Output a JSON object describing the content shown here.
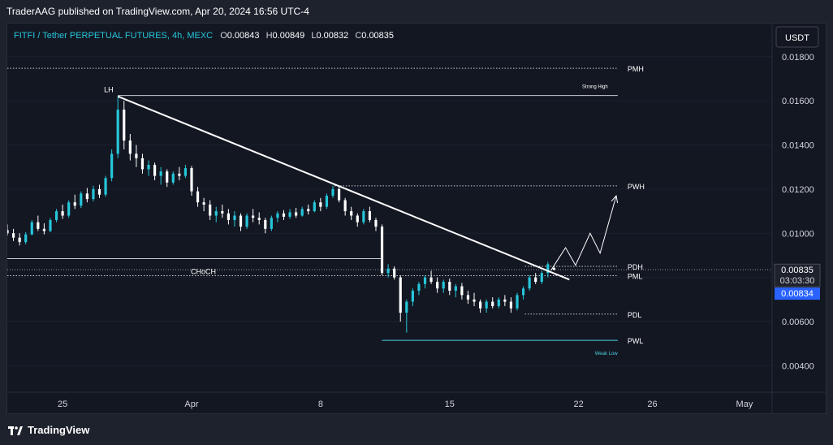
{
  "publisher_line": "TraderAAG published on TradingView.com, Apr 20, 2024 16:56 UTC-4",
  "brand": {
    "name": "TradingView"
  },
  "symbol": {
    "title": "FITFI / Tether PERPETUAL FUTURES, 4h, MEXC",
    "o_label": "O",
    "o": "0.00843",
    "h_label": "H",
    "h": "0.00849",
    "l_label": "L",
    "l": "0.00832",
    "c_label": "C",
    "c": "0.00835"
  },
  "currency_button": "USDT",
  "price_box": {
    "last": "0.00835",
    "countdown": "03:03:30",
    "current": "0.00834"
  },
  "colors": {
    "bull": "#26c6da",
    "bear": "#ffffff",
    "accent": "#2962ff",
    "background": "#131722"
  },
  "chart_data": {
    "type": "candlestick",
    "y_ticks": [
      "0.01800",
      "0.01600",
      "0.01400",
      "0.01200",
      "0.01000",
      "0.00800",
      "0.00600",
      "0.00400"
    ],
    "y_tick_values": [
      0.018,
      0.016,
      0.014,
      0.012,
      0.01,
      0.008,
      0.006,
      0.004
    ],
    "ylim": [
      0.0028,
      0.0195
    ],
    "x_ticks": [
      "25",
      "Apr",
      "8",
      "15",
      "22",
      "26",
      "May"
    ],
    "x_tick_dates": [
      "2024-03-25",
      "2024-04-01",
      "2024-04-08",
      "2024-04-15",
      "2024-04-22",
      "2024-04-26",
      "2024-05-01"
    ],
    "xlim": [
      "2024-03-22T00:00",
      "2024-05-02T12:00"
    ],
    "levels": [
      {
        "label": "PMH",
        "value": 0.01747,
        "style": "dotted",
        "from": "2024-03-22T00:00",
        "to": "2024-04-24T03:00"
      },
      {
        "label": "Strong High",
        "value": 0.01624,
        "style": "solid",
        "from": "2024-03-28T00:00",
        "to": "2024-04-24T03:00"
      },
      {
        "label": "PWH",
        "value": 0.01215,
        "style": "dotted",
        "from": "2024-04-08T18:00",
        "to": "2024-04-24T03:00"
      },
      {
        "label": "CHoCH",
        "value": 0.00885,
        "style": "solid",
        "from": "2024-03-22T00:00",
        "to": "2024-04-11T08:00"
      },
      {
        "label": "PDH",
        "value": 0.0085,
        "style": "dotted",
        "from": "2024-04-19T02:00",
        "to": "2024-04-24T03:00"
      },
      {
        "label": "PML",
        "value": 0.00808,
        "style": "dotted",
        "from": "2024-03-22T00:00",
        "to": "2024-04-24T03:00"
      },
      {
        "label": "PDL",
        "value": 0.00634,
        "style": "dotted",
        "from": "2024-04-19T02:00",
        "to": "2024-04-24T03:00"
      },
      {
        "label": "PWL",
        "value": 0.00515,
        "style": "solid",
        "from": "2024-04-11T08:00",
        "to": "2024-04-24T03:00"
      }
    ],
    "annotations": [
      {
        "text": "LH",
        "x": "2024-03-27T12:00",
        "y": 0.0164
      },
      {
        "text": "Weak Low",
        "x": "2024-04-23T12:00",
        "y": 0.0045
      }
    ],
    "trendline": {
      "from": {
        "x": "2024-03-28T00:00",
        "y": 0.0162
      },
      "to": {
        "x": "2024-04-21T12:00",
        "y": 0.0079
      }
    },
    "projection": [
      {
        "x": "2024-04-20T12:00",
        "y": 0.00832
      },
      {
        "x": "2024-04-21T07:00",
        "y": 0.00935
      },
      {
        "x": "2024-04-21T20:00",
        "y": 0.00855
      },
      {
        "x": "2024-04-22T15:00",
        "y": 0.01
      },
      {
        "x": "2024-04-23T04:00",
        "y": 0.0091
      },
      {
        "x": "2024-04-24T01:00",
        "y": 0.0117
      }
    ],
    "candles": [
      {
        "t": "2024-03-22T00:00",
        "o": 0.01015,
        "h": 0.0104,
        "l": 0.0099,
        "c": 0.01
      },
      {
        "t": "2024-03-22T08:00",
        "o": 0.01,
        "h": 0.0102,
        "l": 0.00965,
        "c": 0.0098
      },
      {
        "t": "2024-03-22T16:00",
        "o": 0.0098,
        "h": 0.01,
        "l": 0.00945,
        "c": 0.0096
      },
      {
        "t": "2024-03-23T00:00",
        "o": 0.0096,
        "h": 0.01005,
        "l": 0.0095,
        "c": 0.00995
      },
      {
        "t": "2024-03-23T08:00",
        "o": 0.00995,
        "h": 0.0106,
        "l": 0.0099,
        "c": 0.0105
      },
      {
        "t": "2024-03-23T16:00",
        "o": 0.0105,
        "h": 0.0108,
        "l": 0.0101,
        "c": 0.0102
      },
      {
        "t": "2024-03-24T00:00",
        "o": 0.0102,
        "h": 0.01045,
        "l": 0.00995,
        "c": 0.0101
      },
      {
        "t": "2024-03-24T08:00",
        "o": 0.0101,
        "h": 0.0107,
        "l": 0.01005,
        "c": 0.0106
      },
      {
        "t": "2024-03-24T16:00",
        "o": 0.0106,
        "h": 0.0111,
        "l": 0.0105,
        "c": 0.011
      },
      {
        "t": "2024-03-25T00:00",
        "o": 0.011,
        "h": 0.0113,
        "l": 0.01065,
        "c": 0.0108
      },
      {
        "t": "2024-03-25T08:00",
        "o": 0.0108,
        "h": 0.0115,
        "l": 0.0107,
        "c": 0.0114
      },
      {
        "t": "2024-03-25T16:00",
        "o": 0.0114,
        "h": 0.01175,
        "l": 0.0111,
        "c": 0.01125
      },
      {
        "t": "2024-03-26T00:00",
        "o": 0.01125,
        "h": 0.0119,
        "l": 0.01115,
        "c": 0.0118
      },
      {
        "t": "2024-03-26T08:00",
        "o": 0.0118,
        "h": 0.01205,
        "l": 0.0114,
        "c": 0.01155
      },
      {
        "t": "2024-03-26T16:00",
        "o": 0.01155,
        "h": 0.01215,
        "l": 0.01145,
        "c": 0.012
      },
      {
        "t": "2024-03-27T00:00",
        "o": 0.012,
        "h": 0.0122,
        "l": 0.0116,
        "c": 0.01175
      },
      {
        "t": "2024-03-27T08:00",
        "o": 0.01175,
        "h": 0.0126,
        "l": 0.01165,
        "c": 0.0125
      },
      {
        "t": "2024-03-27T16:00",
        "o": 0.0125,
        "h": 0.0138,
        "l": 0.01235,
        "c": 0.0136
      },
      {
        "t": "2024-03-28T00:00",
        "o": 0.0136,
        "h": 0.0162,
        "l": 0.0134,
        "c": 0.0156
      },
      {
        "t": "2024-03-28T08:00",
        "o": 0.0156,
        "h": 0.016,
        "l": 0.0138,
        "c": 0.0142
      },
      {
        "t": "2024-03-28T16:00",
        "o": 0.0142,
        "h": 0.0145,
        "l": 0.0133,
        "c": 0.0136
      },
      {
        "t": "2024-03-29T00:00",
        "o": 0.0136,
        "h": 0.014,
        "l": 0.013,
        "c": 0.0134
      },
      {
        "t": "2024-03-29T08:00",
        "o": 0.0134,
        "h": 0.0136,
        "l": 0.0127,
        "c": 0.0129
      },
      {
        "t": "2024-03-29T16:00",
        "o": 0.0129,
        "h": 0.0133,
        "l": 0.0126,
        "c": 0.0131
      },
      {
        "t": "2024-03-30T00:00",
        "o": 0.0131,
        "h": 0.0132,
        "l": 0.0124,
        "c": 0.0126
      },
      {
        "t": "2024-03-30T08:00",
        "o": 0.0126,
        "h": 0.013,
        "l": 0.0122,
        "c": 0.0128
      },
      {
        "t": "2024-03-30T16:00",
        "o": 0.0128,
        "h": 0.0129,
        "l": 0.0121,
        "c": 0.0123
      },
      {
        "t": "2024-03-31T00:00",
        "o": 0.0123,
        "h": 0.0128,
        "l": 0.0122,
        "c": 0.0127
      },
      {
        "t": "2024-03-31T08:00",
        "o": 0.0127,
        "h": 0.013,
        "l": 0.0124,
        "c": 0.0126
      },
      {
        "t": "2024-03-31T16:00",
        "o": 0.0126,
        "h": 0.0131,
        "l": 0.0125,
        "c": 0.01295
      },
      {
        "t": "2024-04-01T00:00",
        "o": 0.01295,
        "h": 0.01305,
        "l": 0.0117,
        "c": 0.0119
      },
      {
        "t": "2024-04-01T08:00",
        "o": 0.0119,
        "h": 0.0121,
        "l": 0.0112,
        "c": 0.0114
      },
      {
        "t": "2024-04-01T16:00",
        "o": 0.0114,
        "h": 0.0116,
        "l": 0.011,
        "c": 0.0113
      },
      {
        "t": "2024-04-02T00:00",
        "o": 0.0113,
        "h": 0.0115,
        "l": 0.0106,
        "c": 0.0108
      },
      {
        "t": "2024-04-02T08:00",
        "o": 0.0108,
        "h": 0.0112,
        "l": 0.0105,
        "c": 0.011
      },
      {
        "t": "2024-04-02T16:00",
        "o": 0.011,
        "h": 0.0113,
        "l": 0.0107,
        "c": 0.0109
      },
      {
        "t": "2024-04-03T00:00",
        "o": 0.0109,
        "h": 0.0111,
        "l": 0.0104,
        "c": 0.0106
      },
      {
        "t": "2024-04-03T08:00",
        "o": 0.0106,
        "h": 0.011,
        "l": 0.0103,
        "c": 0.0108
      },
      {
        "t": "2024-04-03T16:00",
        "o": 0.0108,
        "h": 0.0109,
        "l": 0.0101,
        "c": 0.0103
      },
      {
        "t": "2024-04-04T00:00",
        "o": 0.0103,
        "h": 0.0109,
        "l": 0.0102,
        "c": 0.0108
      },
      {
        "t": "2024-04-04T08:00",
        "o": 0.0108,
        "h": 0.0111,
        "l": 0.0105,
        "c": 0.0107
      },
      {
        "t": "2024-04-04T16:00",
        "o": 0.0107,
        "h": 0.01095,
        "l": 0.0104,
        "c": 0.0106
      },
      {
        "t": "2024-04-05T00:00",
        "o": 0.0106,
        "h": 0.0107,
        "l": 0.01,
        "c": 0.0102
      },
      {
        "t": "2024-04-05T08:00",
        "o": 0.0102,
        "h": 0.0108,
        "l": 0.0101,
        "c": 0.0107
      },
      {
        "t": "2024-04-05T16:00",
        "o": 0.0107,
        "h": 0.011,
        "l": 0.0105,
        "c": 0.0109
      },
      {
        "t": "2024-04-06T00:00",
        "o": 0.0109,
        "h": 0.01105,
        "l": 0.0106,
        "c": 0.01075
      },
      {
        "t": "2024-04-06T08:00",
        "o": 0.01075,
        "h": 0.0111,
        "l": 0.01065,
        "c": 0.01095
      },
      {
        "t": "2024-04-06T16:00",
        "o": 0.01095,
        "h": 0.01115,
        "l": 0.0107,
        "c": 0.0108
      },
      {
        "t": "2024-04-07T00:00",
        "o": 0.0108,
        "h": 0.0112,
        "l": 0.01075,
        "c": 0.0111
      },
      {
        "t": "2024-04-07T08:00",
        "o": 0.0111,
        "h": 0.0113,
        "l": 0.01085,
        "c": 0.011
      },
      {
        "t": "2024-04-07T16:00",
        "o": 0.011,
        "h": 0.0115,
        "l": 0.01095,
        "c": 0.0114
      },
      {
        "t": "2024-04-08T00:00",
        "o": 0.0114,
        "h": 0.0116,
        "l": 0.011,
        "c": 0.0112
      },
      {
        "t": "2024-04-08T08:00",
        "o": 0.0112,
        "h": 0.0118,
        "l": 0.0111,
        "c": 0.0117
      },
      {
        "t": "2024-04-08T16:00",
        "o": 0.0117,
        "h": 0.01215,
        "l": 0.0116,
        "c": 0.012
      },
      {
        "t": "2024-04-09T00:00",
        "o": 0.012,
        "h": 0.0121,
        "l": 0.0114,
        "c": 0.0115
      },
      {
        "t": "2024-04-09T08:00",
        "o": 0.0115,
        "h": 0.0116,
        "l": 0.0108,
        "c": 0.011
      },
      {
        "t": "2024-04-09T16:00",
        "o": 0.011,
        "h": 0.0112,
        "l": 0.0106,
        "c": 0.0108
      },
      {
        "t": "2024-04-10T00:00",
        "o": 0.0108,
        "h": 0.0109,
        "l": 0.0103,
        "c": 0.0105
      },
      {
        "t": "2024-04-10T08:00",
        "o": 0.0105,
        "h": 0.0111,
        "l": 0.0104,
        "c": 0.011
      },
      {
        "t": "2024-04-10T16:00",
        "o": 0.011,
        "h": 0.0112,
        "l": 0.0105,
        "c": 0.0106
      },
      {
        "t": "2024-04-11T00:00",
        "o": 0.0106,
        "h": 0.0107,
        "l": 0.0101,
        "c": 0.0103
      },
      {
        "t": "2024-04-11T08:00",
        "o": 0.0103,
        "h": 0.0104,
        "l": 0.0081,
        "c": 0.0082
      },
      {
        "t": "2024-04-11T16:00",
        "o": 0.0082,
        "h": 0.0086,
        "l": 0.008,
        "c": 0.0084
      },
      {
        "t": "2024-04-12T00:00",
        "o": 0.0084,
        "h": 0.0085,
        "l": 0.0079,
        "c": 0.008
      },
      {
        "t": "2024-04-12T08:00",
        "o": 0.008,
        "h": 0.0081,
        "l": 0.006,
        "c": 0.0064
      },
      {
        "t": "2024-04-12T16:00",
        "o": 0.0064,
        "h": 0.007,
        "l": 0.0055,
        "c": 0.0069
      },
      {
        "t": "2024-04-13T00:00",
        "o": 0.0069,
        "h": 0.0075,
        "l": 0.0067,
        "c": 0.0074
      },
      {
        "t": "2024-04-13T08:00",
        "o": 0.0074,
        "h": 0.0078,
        "l": 0.0072,
        "c": 0.0077
      },
      {
        "t": "2024-04-13T16:00",
        "o": 0.0077,
        "h": 0.0081,
        "l": 0.0075,
        "c": 0.008
      },
      {
        "t": "2024-04-14T00:00",
        "o": 0.008,
        "h": 0.0083,
        "l": 0.0077,
        "c": 0.0078
      },
      {
        "t": "2024-04-14T08:00",
        "o": 0.0078,
        "h": 0.008,
        "l": 0.0073,
        "c": 0.0075
      },
      {
        "t": "2024-04-14T16:00",
        "o": 0.0075,
        "h": 0.0079,
        "l": 0.0073,
        "c": 0.0078
      },
      {
        "t": "2024-04-15T00:00",
        "o": 0.0078,
        "h": 0.00795,
        "l": 0.0072,
        "c": 0.0074
      },
      {
        "t": "2024-04-15T08:00",
        "o": 0.0074,
        "h": 0.0077,
        "l": 0.0071,
        "c": 0.0076
      },
      {
        "t": "2024-04-15T16:00",
        "o": 0.0076,
        "h": 0.00775,
        "l": 0.007,
        "c": 0.0072
      },
      {
        "t": "2024-04-16T00:00",
        "o": 0.0072,
        "h": 0.0074,
        "l": 0.0068,
        "c": 0.007
      },
      {
        "t": "2024-04-16T08:00",
        "o": 0.007,
        "h": 0.0073,
        "l": 0.0067,
        "c": 0.0069
      },
      {
        "t": "2024-04-16T16:00",
        "o": 0.0069,
        "h": 0.007,
        "l": 0.0064,
        "c": 0.0066
      },
      {
        "t": "2024-04-17T00:00",
        "o": 0.0066,
        "h": 0.007,
        "l": 0.0064,
        "c": 0.0069
      },
      {
        "t": "2024-04-17T08:00",
        "o": 0.0069,
        "h": 0.0071,
        "l": 0.0066,
        "c": 0.0067
      },
      {
        "t": "2024-04-17T16:00",
        "o": 0.0067,
        "h": 0.0071,
        "l": 0.0066,
        "c": 0.007
      },
      {
        "t": "2024-04-18T00:00",
        "o": 0.007,
        "h": 0.0072,
        "l": 0.0067,
        "c": 0.0069
      },
      {
        "t": "2024-04-18T08:00",
        "o": 0.0069,
        "h": 0.0071,
        "l": 0.0064,
        "c": 0.0066
      },
      {
        "t": "2024-04-18T16:00",
        "o": 0.0066,
        "h": 0.0073,
        "l": 0.0065,
        "c": 0.0072
      },
      {
        "t": "2024-04-19T00:00",
        "o": 0.0072,
        "h": 0.0076,
        "l": 0.007,
        "c": 0.0075
      },
      {
        "t": "2024-04-19T08:00",
        "o": 0.0075,
        "h": 0.0081,
        "l": 0.0074,
        "c": 0.008
      },
      {
        "t": "2024-04-19T16:00",
        "o": 0.008,
        "h": 0.0082,
        "l": 0.0077,
        "c": 0.0078
      },
      {
        "t": "2024-04-20T00:00",
        "o": 0.0078,
        "h": 0.0083,
        "l": 0.0077,
        "c": 0.0082
      },
      {
        "t": "2024-04-20T08:00",
        "o": 0.0082,
        "h": 0.0087,
        "l": 0.008,
        "c": 0.0086
      },
      {
        "t": "2024-04-20T16:00",
        "o": 0.00843,
        "h": 0.00849,
        "l": 0.00832,
        "c": 0.00835
      }
    ]
  }
}
